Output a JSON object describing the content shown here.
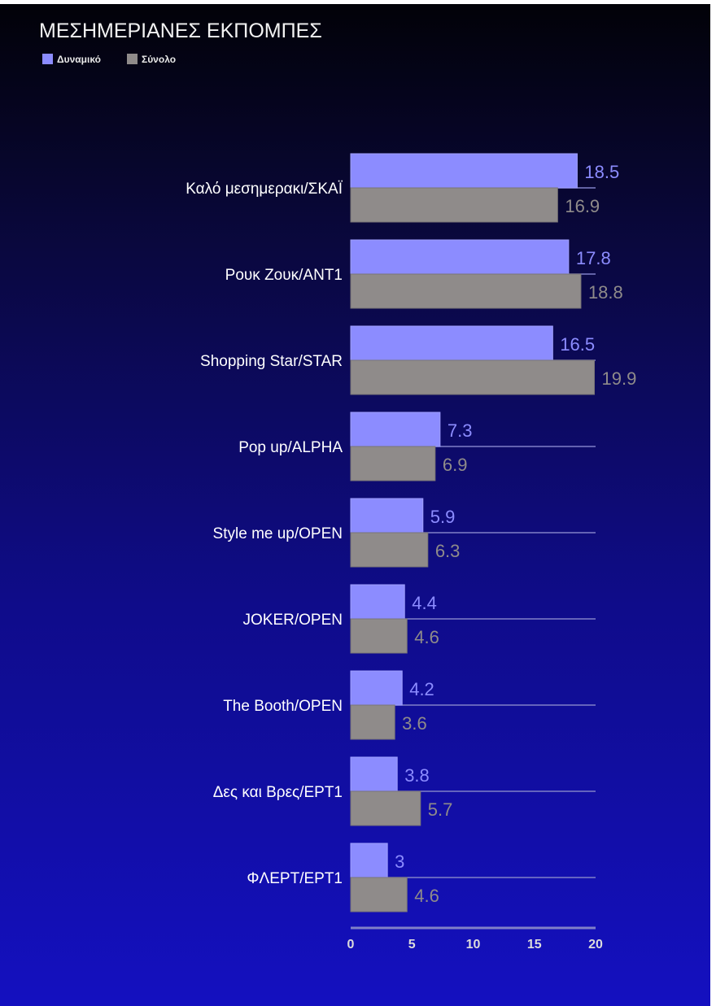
{
  "chart_data": {
    "type": "bar",
    "orientation": "horizontal",
    "title": "ΜΕΣΗΜΕΡΙΑΝΕΣ ΕΚΠΟΜΠΕΣ",
    "legend_position": "top-left",
    "categories": [
      "Καλό μεσημερακι/ΣΚΑΪ",
      "Ρουκ Ζουκ/ANT1",
      "Shopping Star/STAR",
      "Pop up/ALPHA",
      "Style me up/OPEN",
      "JOKER/OPEN",
      "The Booth/OPEN",
      "Δες και Βρες/ΕΡΤ1",
      "ΦΛΕΡΤ/ΕΡΤ1"
    ],
    "series": [
      {
        "name": "Δυναμικό",
        "color": "#8c8cff",
        "values": [
          18.5,
          17.8,
          16.5,
          7.3,
          5.9,
          4.4,
          4.2,
          3.8,
          3
        ]
      },
      {
        "name": "Σύνολο",
        "color": "#8f8b8a",
        "values": [
          16.9,
          18.8,
          19.9,
          6.9,
          6.3,
          4.6,
          3.6,
          5.7,
          4.6
        ]
      }
    ],
    "xlim": [
      0,
      20
    ],
    "xticks": [
      0,
      5,
      10,
      15,
      20
    ],
    "grid": false,
    "label_colors": {
      "Δυναμικό": "#8c8cff",
      "Σύνολο": "#8f8b8a"
    }
  }
}
